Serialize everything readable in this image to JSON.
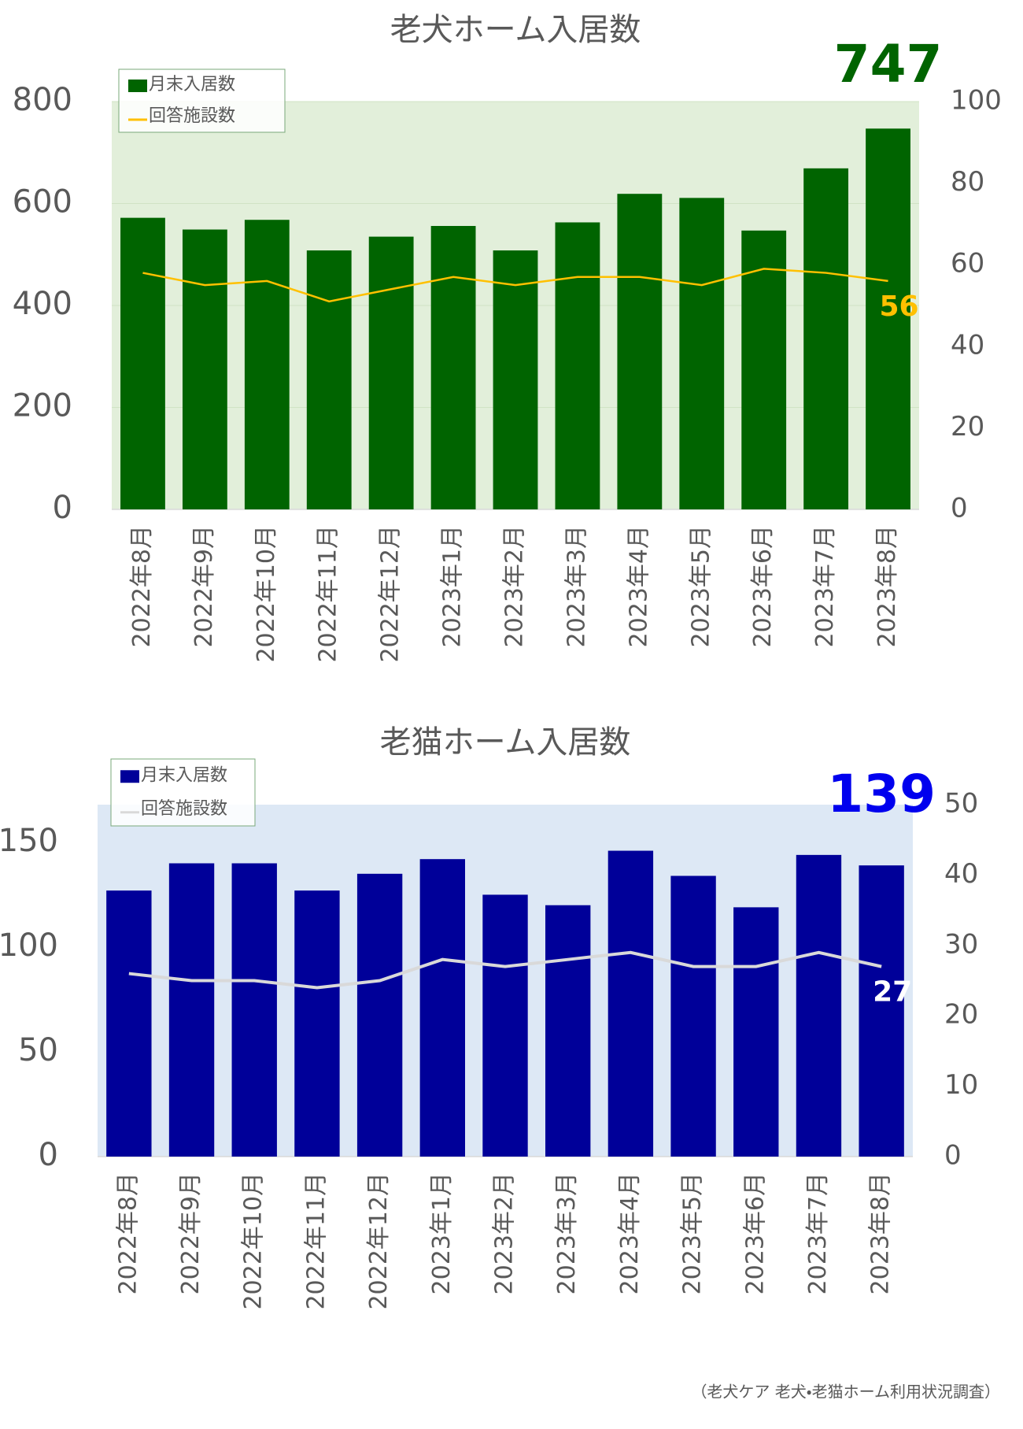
{
  "chart_data": [
    {
      "type": "bar",
      "title": "老犬ホーム入居数",
      "categories": [
        "2022年8月",
        "2022年9月",
        "2022年10月",
        "2022年11月",
        "2022年12月",
        "2023年1月",
        "2023年2月",
        "2023年3月",
        "2023年4月",
        "2023年5月",
        "2023年6月",
        "2023年7月",
        "2023年8月"
      ],
      "series": [
        {
          "name": "月末入居数",
          "color": "#006400",
          "values": [
            572,
            549,
            568,
            508,
            535,
            556,
            508,
            563,
            619,
            611,
            547,
            669,
            747
          ],
          "data_labels": "last",
          "label_color": "#006400"
        },
        {
          "name": "回答施設数",
          "color": "#ffc000",
          "type": "line",
          "axis": "y2",
          "values": [
            58,
            55,
            56,
            51,
            54,
            57,
            55,
            57,
            57,
            55,
            59,
            58,
            56
          ],
          "data_labels": "last",
          "label_color": "#ffc000"
        }
      ],
      "ylim": [
        0,
        800
      ],
      "yticks": [
        0,
        200,
        400,
        600,
        800
      ],
      "y2lim": [
        0,
        100
      ],
      "y2ticks": [
        0,
        20,
        40,
        60,
        80,
        100
      ],
      "grid": true,
      "legend": "upper left",
      "plot_background": "#e2efda"
    },
    {
      "type": "bar",
      "title": "老猫ホーム入居数",
      "categories": [
        "2022年8月",
        "2022年9月",
        "2022年10月",
        "2022年11月",
        "2022年12月",
        "2023年1月",
        "2023年2月",
        "2023年3月",
        "2023年4月",
        "2023年5月",
        "2023年6月",
        "2023年7月",
        "2023年8月"
      ],
      "series": [
        {
          "name": "月末入居数",
          "color": "#000099",
          "values": [
            127,
            140,
            140,
            127,
            135,
            142,
            125,
            120,
            146,
            134,
            119,
            144,
            139
          ],
          "data_labels": "last",
          "label_color": "#0000ee"
        },
        {
          "name": "回答施設数",
          "color": "#d9d9d9",
          "type": "line",
          "axis": "y2",
          "values": [
            26,
            25,
            25,
            24,
            25,
            28,
            27,
            28,
            29,
            27,
            27,
            29,
            27
          ],
          "data_labels": "last",
          "label_color": "#ffffff"
        }
      ],
      "ylim": [
        0,
        168
      ],
      "yticks": [
        0,
        50,
        100,
        150
      ],
      "y2lim": [
        0,
        50
      ],
      "y2ticks": [
        0,
        10,
        20,
        30,
        40,
        50
      ],
      "grid": false,
      "legend": "upper left",
      "plot_background": "#dde8f5"
    }
  ],
  "footer": {
    "source": "（老犬ケア 老犬・老猫ホーム利用状況調査）"
  }
}
